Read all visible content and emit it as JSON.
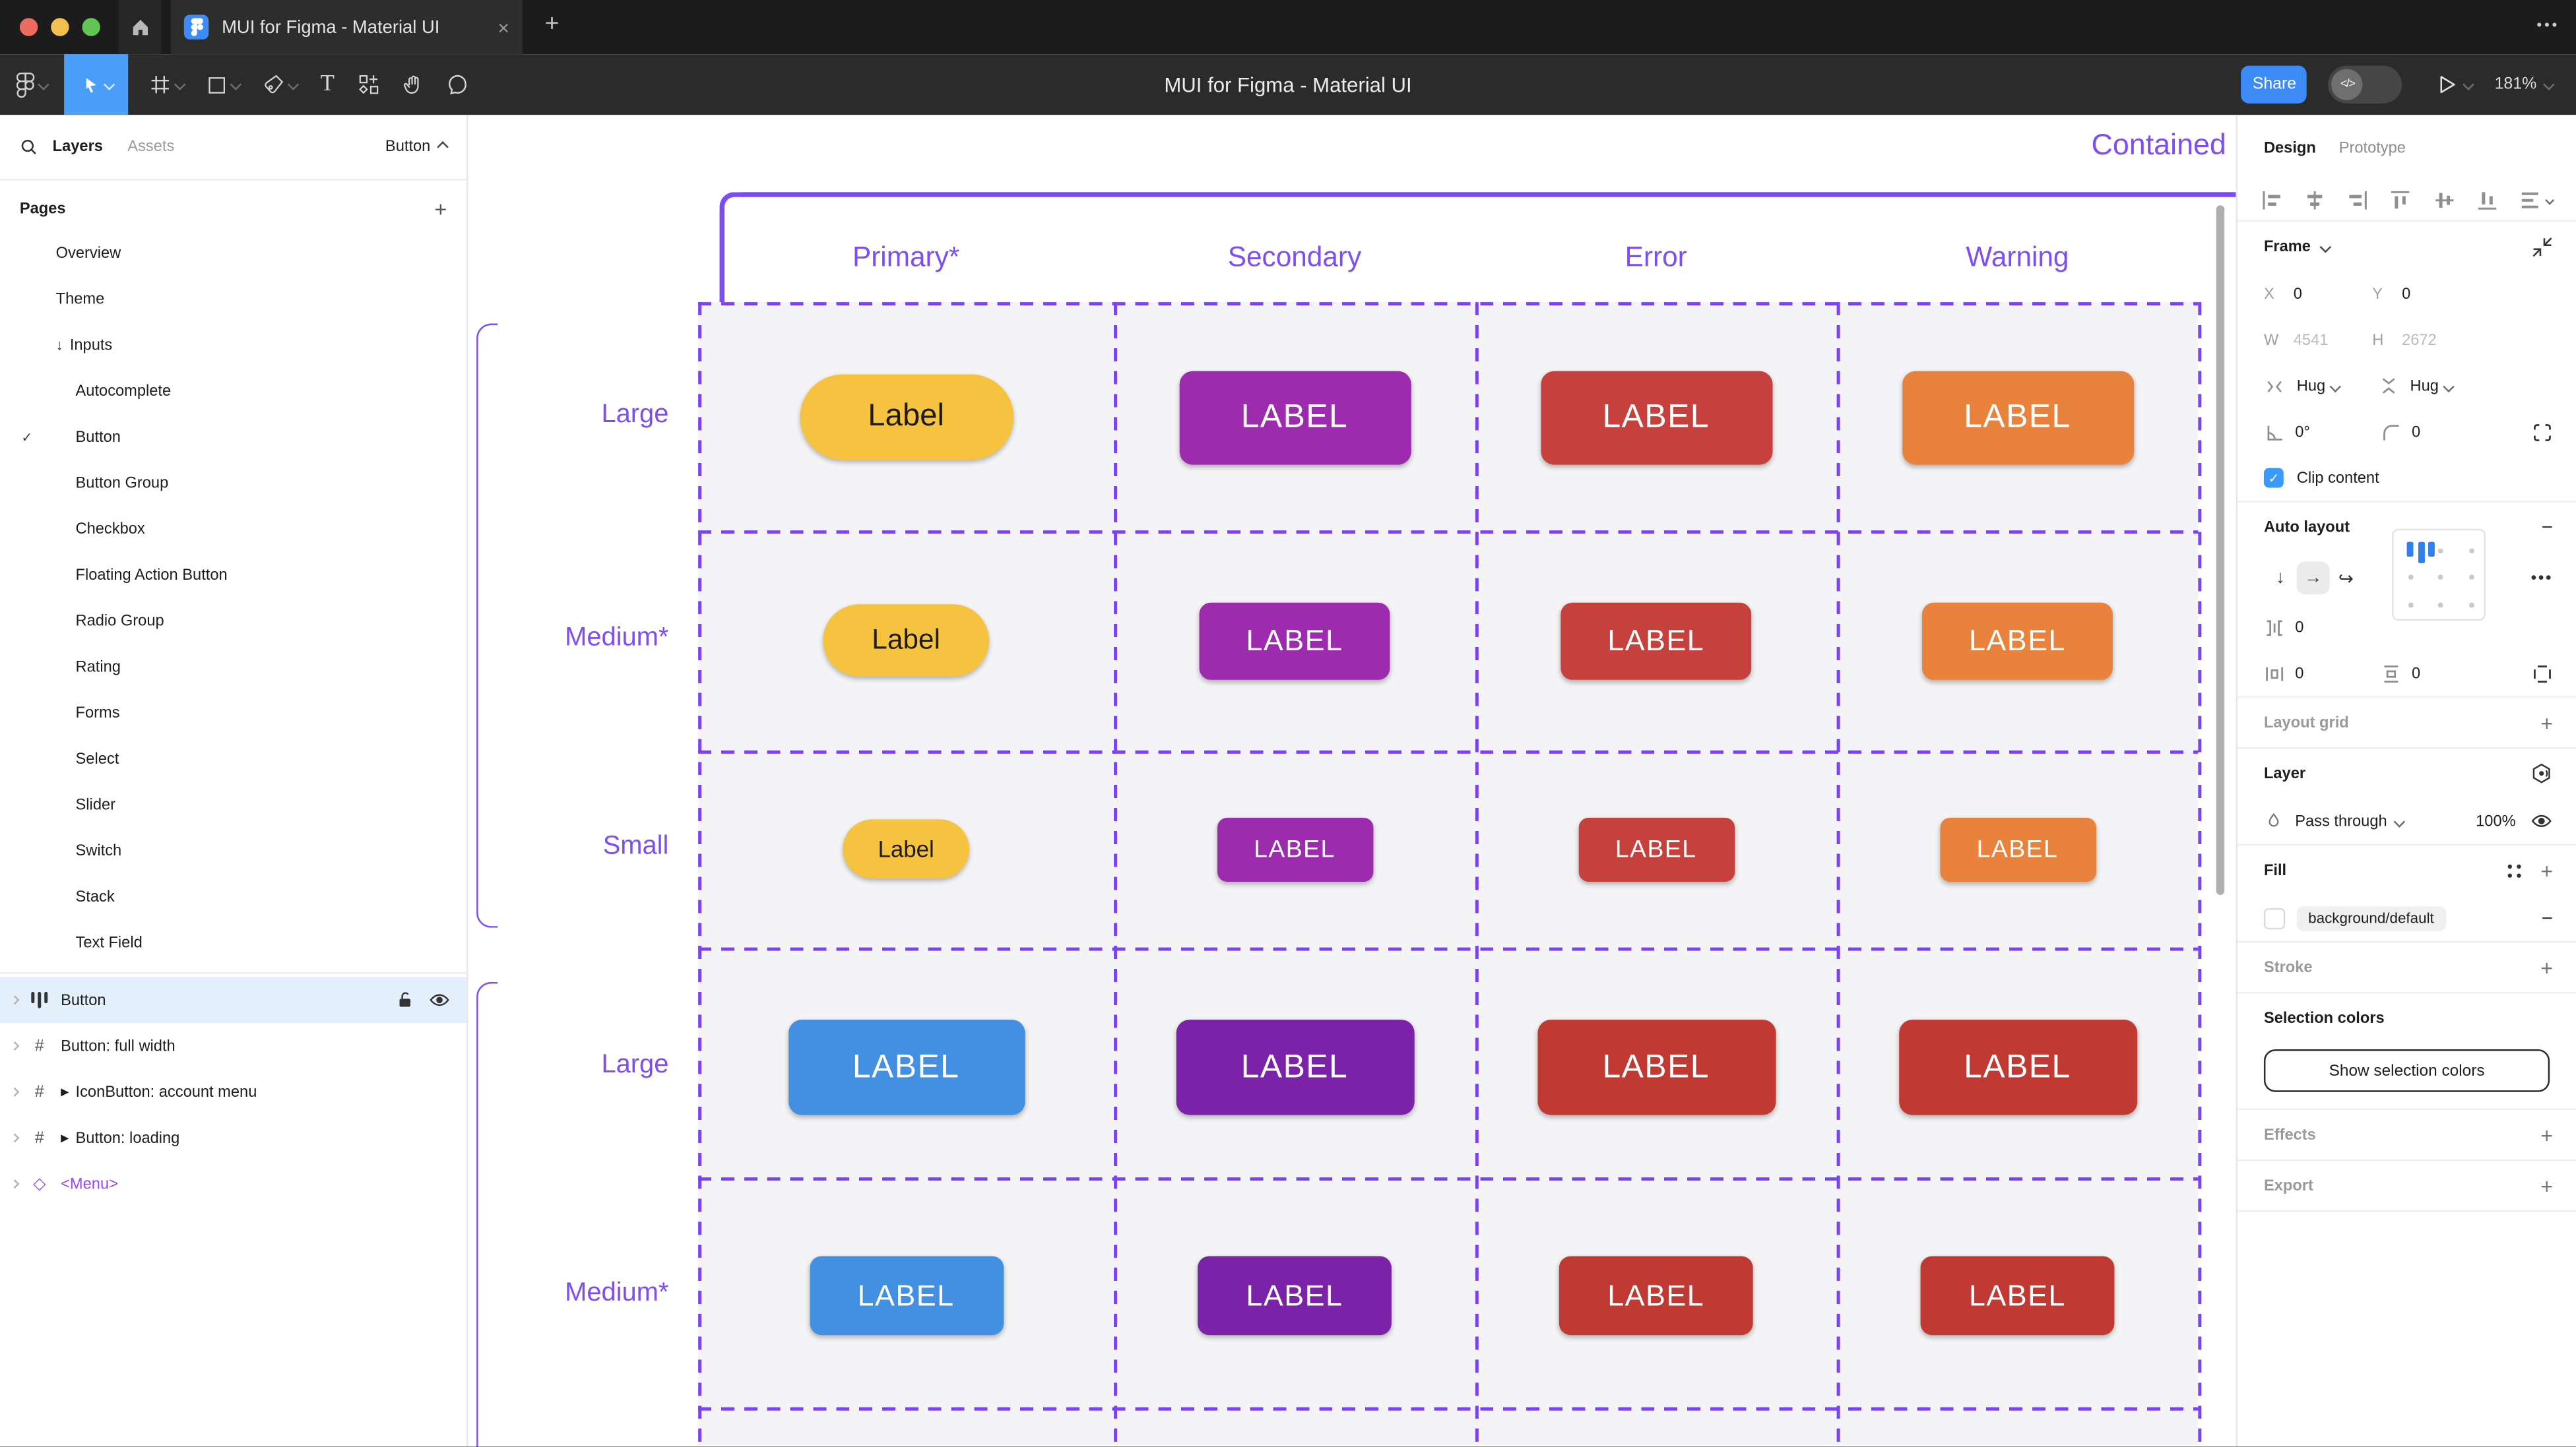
{
  "titlebar": {
    "tab_title": "MUI for Figma - Material UI"
  },
  "toolbar": {
    "title": "MUI for Figma - Material UI",
    "share_label": "Share",
    "zoom_level": "181%"
  },
  "left_panel": {
    "tabs": {
      "layers": "Layers",
      "assets": "Assets"
    },
    "component_dropdown": "Button",
    "pages_header": "Pages",
    "pages": [
      {
        "label": "Overview",
        "indent": 1
      },
      {
        "label": "Theme",
        "indent": 1
      },
      {
        "label": "Inputs",
        "indent": 1,
        "prefix": "arrow-down"
      },
      {
        "label": "Autocomplete",
        "indent": 2
      },
      {
        "label": "Button",
        "indent": 2,
        "checked": true
      },
      {
        "label": "Button Group",
        "indent": 2
      },
      {
        "label": "Checkbox",
        "indent": 2
      },
      {
        "label": "Floating Action Button",
        "indent": 2
      },
      {
        "label": "Radio Group",
        "indent": 2
      },
      {
        "label": "Rating",
        "indent": 2
      },
      {
        "label": "Forms",
        "indent": 2
      },
      {
        "label": "Select",
        "indent": 2
      },
      {
        "label": "Slider",
        "indent": 2
      },
      {
        "label": "Switch",
        "indent": 2
      },
      {
        "label": "Stack",
        "indent": 2
      },
      {
        "label": "Text Field",
        "indent": 2
      }
    ],
    "layers": [
      {
        "label": "Button",
        "icon": "auto-layout",
        "selected": true
      },
      {
        "label": "Button: full width",
        "icon": "frame"
      },
      {
        "label": "IconButton: account menu",
        "icon": "frame",
        "play": true
      },
      {
        "label": "Button: loading",
        "icon": "frame",
        "play": true
      },
      {
        "label": "<Menu>",
        "icon": "diamond",
        "purple": true
      }
    ]
  },
  "canvas": {
    "frame_title": "Contained",
    "columns": [
      "Primary*",
      "Secondary",
      "Error",
      "Warning"
    ],
    "button_rows": [
      {
        "row_label": "Large",
        "cells": [
          {
            "text": "Label",
            "bg": "#F5C340",
            "fg": "#211A0E",
            "w": 130,
            "h": 52,
            "r": 26,
            "fs": 19
          },
          {
            "text": "LABEL",
            "bg": "#9C2BAE",
            "fg": "#FFFFFF",
            "w": 141,
            "h": 57,
            "r": 8,
            "fs": 20
          },
          {
            "text": "LABEL",
            "bg": "#C6413D",
            "fg": "#FFFFFF",
            "w": 141,
            "h": 57,
            "r": 8,
            "fs": 20
          },
          {
            "text": "LABEL",
            "bg": "#E8823C",
            "fg": "#FFFFFF",
            "w": 141,
            "h": 57,
            "r": 8,
            "fs": 20
          }
        ]
      },
      {
        "row_label": "Medium*",
        "cells": [
          {
            "text": "Label",
            "bg": "#F5C340",
            "fg": "#211A0E",
            "w": 101,
            "h": 44,
            "r": 22,
            "fs": 17
          },
          {
            "text": "LABEL",
            "bg": "#9C2BAE",
            "fg": "#FFFFFF",
            "w": 116,
            "h": 47,
            "r": 7,
            "fs": 18
          },
          {
            "text": "LABEL",
            "bg": "#C6413D",
            "fg": "#FFFFFF",
            "w": 116,
            "h": 47,
            "r": 7,
            "fs": 18
          },
          {
            "text": "LABEL",
            "bg": "#E8823C",
            "fg": "#FFFFFF",
            "w": 116,
            "h": 47,
            "r": 7,
            "fs": 18
          }
        ]
      },
      {
        "row_label": "Small",
        "cells": [
          {
            "text": "Label",
            "bg": "#F5C340",
            "fg": "#211A0E",
            "w": 77,
            "h": 36,
            "r": 18,
            "fs": 14
          },
          {
            "text": "LABEL",
            "bg": "#9C2BAE",
            "fg": "#FFFFFF",
            "w": 95,
            "h": 39,
            "r": 6,
            "fs": 15
          },
          {
            "text": "LABEL",
            "bg": "#C6413D",
            "fg": "#FFFFFF",
            "w": 95,
            "h": 39,
            "r": 6,
            "fs": 15
          },
          {
            "text": "LABEL",
            "bg": "#E8823C",
            "fg": "#FFFFFF",
            "w": 95,
            "h": 39,
            "r": 6,
            "fs": 15
          }
        ]
      },
      {
        "row_label": "Large",
        "cells": [
          {
            "text": "LABEL",
            "bg": "#438FE2",
            "fg": "#FFFFFF",
            "w": 144,
            "h": 58,
            "r": 8,
            "fs": 20
          },
          {
            "text": "LABEL",
            "bg": "#7B22A8",
            "fg": "#FFFFFF",
            "w": 145,
            "h": 58,
            "r": 8,
            "fs": 20
          },
          {
            "text": "LABEL",
            "bg": "#C03A33",
            "fg": "#FFFFFF",
            "w": 145,
            "h": 58,
            "r": 8,
            "fs": 20
          },
          {
            "text": "LABEL",
            "bg": "#C03A33",
            "fg": "#FFFFFF",
            "w": 145,
            "h": 58,
            "r": 8,
            "fs": 20
          }
        ]
      },
      {
        "row_label": "Medium*",
        "cells": [
          {
            "text": "LABEL",
            "bg": "#438FE2",
            "fg": "#FFFFFF",
            "w": 118,
            "h": 48,
            "r": 7,
            "fs": 18
          },
          {
            "text": "LABEL",
            "bg": "#7B22A8",
            "fg": "#FFFFFF",
            "w": 118,
            "h": 48,
            "r": 7,
            "fs": 18
          },
          {
            "text": "LABEL",
            "bg": "#C03A33",
            "fg": "#FFFFFF",
            "w": 118,
            "h": 48,
            "r": 7,
            "fs": 18
          },
          {
            "text": "LABEL",
            "bg": "#C03A33",
            "fg": "#FFFFFF",
            "w": 118,
            "h": 48,
            "r": 7,
            "fs": 18
          }
        ]
      }
    ]
  },
  "right_panel": {
    "tabs": {
      "design": "Design",
      "prototype": "Prototype"
    },
    "frame": {
      "title": "Frame",
      "x_label": "X",
      "x": "0",
      "y_label": "Y",
      "y": "0",
      "w_label": "W",
      "w": "4541",
      "h_label": "H",
      "h": "2672",
      "h_resize": "Hug",
      "v_resize": "Hug",
      "rotation": "0°",
      "radius": "0",
      "clip_label": "Clip content"
    },
    "auto_layout": {
      "title": "Auto layout",
      "gap": "0",
      "pad_h": "0",
      "pad_v": "0"
    },
    "layout_grid": {
      "title": "Layout grid"
    },
    "layer": {
      "title": "Layer",
      "blend_mode": "Pass through",
      "opacity": "100%"
    },
    "fill": {
      "title": "Fill",
      "value": "background/default"
    },
    "stroke": {
      "title": "Stroke"
    },
    "selection_colors": {
      "title": "Selection colors",
      "button": "Show selection colors"
    },
    "effects": {
      "title": "Effects"
    },
    "export": {
      "title": "Export"
    }
  },
  "colors": {
    "accent_purple": "#7D4DF6",
    "figma_blue": "#3D8BF7",
    "selected_tool_blue": "#4A9DF8",
    "selected_row_bg": "#E3F0FC",
    "grid_bg": "#F4F4F6"
  }
}
